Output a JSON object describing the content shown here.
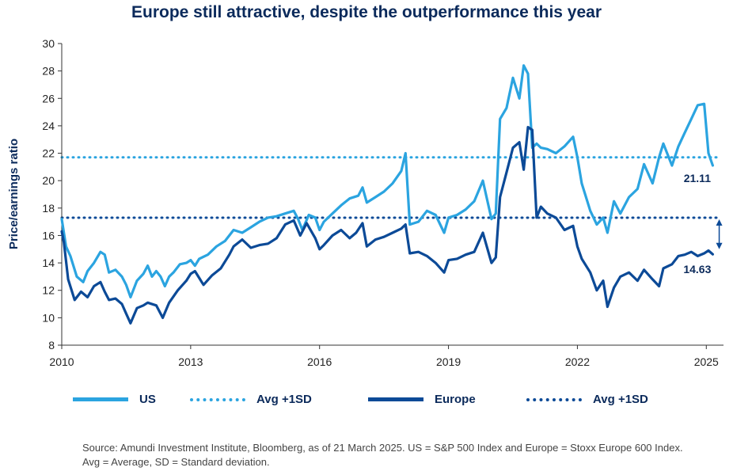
{
  "title": "Europe still attractive, despite the outperformance this year",
  "source": "Source: Amundi Investment Institute, Bloomberg, as of 21 March 2025. US = S&P 500 Index and Europe = Stoxx Europe 600 Index. Avg = Average, SD = Standard deviation.",
  "colors": {
    "us": "#2ba4e0",
    "europe": "#0c4a97",
    "text": "#0b2a5b"
  },
  "legend": [
    {
      "label": "US",
      "style": "solid",
      "color": "#2ba4e0"
    },
    {
      "label": "Avg +1SD",
      "style": "dotted",
      "color": "#2ba4e0"
    },
    {
      "label": "Europe",
      "style": "solid",
      "color": "#0c4a97"
    },
    {
      "label": "Avg +1SD",
      "style": "dotted",
      "color": "#0c4a97"
    }
  ],
  "chart_data": {
    "type": "line",
    "ylabel": "Price/earnings ratio",
    "xlabel": "",
    "ylim": [
      8,
      30
    ],
    "xlim": [
      2010,
      2025.4
    ],
    "yticks": [
      8,
      10,
      12,
      14,
      16,
      18,
      20,
      22,
      24,
      26,
      28,
      30
    ],
    "xticks": [
      2010,
      2013,
      2016,
      2019,
      2022,
      2025
    ],
    "xtick_labels": [
      "2010",
      "2013",
      "2016",
      "2019",
      "2022",
      "2025"
    ],
    "reference_lines": [
      {
        "name": "US Avg +1SD",
        "y": 21.7,
        "style": "dotted"
      },
      {
        "name": "Europe Avg +1SD",
        "y": 17.3,
        "style": "dotted"
      }
    ],
    "annotations": [
      {
        "text": "21.11",
        "series": "US",
        "x": 2025.2,
        "y": 21.11
      },
      {
        "text": "14.63",
        "series": "Europe",
        "x": 2025.2,
        "y": 14.63
      }
    ],
    "series": [
      {
        "name": "US",
        "x": [
          2010.0,
          2010.1,
          2010.2,
          2010.35,
          2010.5,
          2010.6,
          2010.75,
          2010.9,
          2011.0,
          2011.1,
          2011.25,
          2011.4,
          2011.5,
          2011.6,
          2011.75,
          2011.9,
          2012.0,
          2012.1,
          2012.2,
          2012.3,
          2012.4,
          2012.5,
          2012.6,
          2012.75,
          2012.9,
          2013.0,
          2013.1,
          2013.2,
          2013.4,
          2013.6,
          2013.8,
          2014.0,
          2014.2,
          2014.4,
          2014.6,
          2014.8,
          2015.0,
          2015.2,
          2015.4,
          2015.5,
          2015.6,
          2015.75,
          2015.9,
          2016.0,
          2016.1,
          2016.3,
          2016.5,
          2016.7,
          2016.9,
          2017.0,
          2017.1,
          2017.3,
          2017.5,
          2017.7,
          2017.9,
          2018.0,
          2018.1,
          2018.3,
          2018.5,
          2018.7,
          2018.9,
          2019.0,
          2019.2,
          2019.4,
          2019.6,
          2019.8,
          2020.0,
          2020.1,
          2020.2,
          2020.35,
          2020.5,
          2020.65,
          2020.75,
          2020.85,
          2020.95,
          2021.05,
          2021.15,
          2021.3,
          2021.5,
          2021.7,
          2021.9,
          2022.0,
          2022.1,
          2022.3,
          2022.45,
          2022.6,
          2022.7,
          2022.85,
          2023.0,
          2023.2,
          2023.4,
          2023.55,
          2023.75,
          2023.9,
          2024.0,
          2024.2,
          2024.35,
          2024.5,
          2024.65,
          2024.8,
          2024.95,
          2025.05,
          2025.15
        ],
        "values": [
          17.2,
          15.2,
          14.5,
          13.0,
          12.6,
          13.4,
          14.0,
          14.8,
          14.6,
          13.3,
          13.5,
          13.0,
          12.4,
          11.5,
          12.7,
          13.2,
          13.8,
          13.0,
          13.4,
          13.0,
          12.3,
          13.0,
          13.3,
          13.9,
          14.0,
          14.2,
          13.8,
          14.3,
          14.6,
          15.2,
          15.6,
          16.4,
          16.2,
          16.6,
          17.0,
          17.3,
          17.4,
          17.6,
          17.8,
          17.2,
          16.4,
          17.5,
          17.3,
          16.4,
          17.0,
          17.6,
          18.2,
          18.7,
          18.9,
          19.5,
          18.4,
          18.8,
          19.2,
          19.8,
          20.7,
          22.0,
          16.8,
          17.0,
          17.8,
          17.5,
          16.2,
          17.3,
          17.5,
          17.9,
          18.5,
          20.0,
          17.2,
          17.6,
          24.5,
          25.3,
          27.5,
          26.0,
          28.4,
          27.8,
          22.4,
          22.7,
          22.4,
          22.3,
          22.0,
          22.5,
          23.2,
          21.7,
          19.8,
          17.8,
          16.8,
          17.3,
          16.2,
          18.5,
          17.6,
          18.8,
          19.4,
          21.2,
          19.8,
          21.7,
          22.7,
          21.1,
          22.5,
          23.5,
          24.5,
          25.5,
          25.6,
          22.0,
          21.11
        ]
      },
      {
        "name": "Europe",
        "x": [
          2010.0,
          2010.05,
          2010.15,
          2010.3,
          2010.45,
          2010.6,
          2010.75,
          2010.9,
          2011.0,
          2011.1,
          2011.25,
          2011.4,
          2011.5,
          2011.6,
          2011.75,
          2011.9,
          2012.0,
          2012.2,
          2012.35,
          2012.5,
          2012.7,
          2012.9,
          2013.0,
          2013.1,
          2013.3,
          2013.5,
          2013.7,
          2013.9,
          2014.0,
          2014.2,
          2014.4,
          2014.6,
          2014.8,
          2015.0,
          2015.2,
          2015.4,
          2015.55,
          2015.7,
          2015.9,
          2016.0,
          2016.1,
          2016.3,
          2016.5,
          2016.7,
          2016.85,
          2017.0,
          2017.1,
          2017.3,
          2017.5,
          2017.7,
          2017.9,
          2018.0,
          2018.1,
          2018.3,
          2018.5,
          2018.7,
          2018.9,
          2019.0,
          2019.2,
          2019.4,
          2019.6,
          2019.8,
          2020.0,
          2020.1,
          2020.2,
          2020.35,
          2020.5,
          2020.65,
          2020.75,
          2020.85,
          2020.95,
          2021.05,
          2021.15,
          2021.3,
          2021.5,
          2021.7,
          2021.9,
          2022.0,
          2022.1,
          2022.3,
          2022.45,
          2022.6,
          2022.7,
          2022.85,
          2023.0,
          2023.2,
          2023.4,
          2023.55,
          2023.75,
          2023.9,
          2024.0,
          2024.2,
          2024.35,
          2024.5,
          2024.65,
          2024.8,
          2024.95,
          2025.05,
          2025.15
        ],
        "values": [
          16.3,
          15.5,
          12.8,
          11.3,
          11.9,
          11.5,
          12.3,
          12.6,
          11.9,
          11.3,
          11.4,
          11.0,
          10.3,
          9.6,
          10.7,
          10.9,
          11.1,
          10.9,
          10.0,
          11.1,
          12.0,
          12.7,
          13.2,
          13.4,
          12.4,
          13.1,
          13.6,
          14.6,
          15.2,
          15.7,
          15.1,
          15.3,
          15.4,
          15.8,
          16.8,
          17.1,
          16.0,
          16.9,
          15.8,
          15.0,
          15.3,
          16.0,
          16.4,
          15.8,
          16.2,
          16.9,
          15.2,
          15.7,
          15.9,
          16.2,
          16.5,
          16.8,
          14.7,
          14.8,
          14.5,
          14.0,
          13.3,
          14.2,
          14.3,
          14.6,
          14.8,
          16.2,
          14.0,
          14.4,
          18.8,
          20.6,
          22.4,
          22.8,
          20.8,
          23.9,
          23.7,
          17.3,
          18.1,
          17.6,
          17.3,
          16.4,
          16.7,
          15.2,
          14.3,
          13.3,
          12.0,
          12.7,
          10.8,
          12.2,
          13.0,
          13.3,
          12.7,
          13.5,
          12.8,
          12.3,
          13.6,
          13.9,
          14.5,
          14.6,
          14.8,
          14.5,
          14.7,
          14.9,
          14.63
        ]
      }
    ]
  }
}
